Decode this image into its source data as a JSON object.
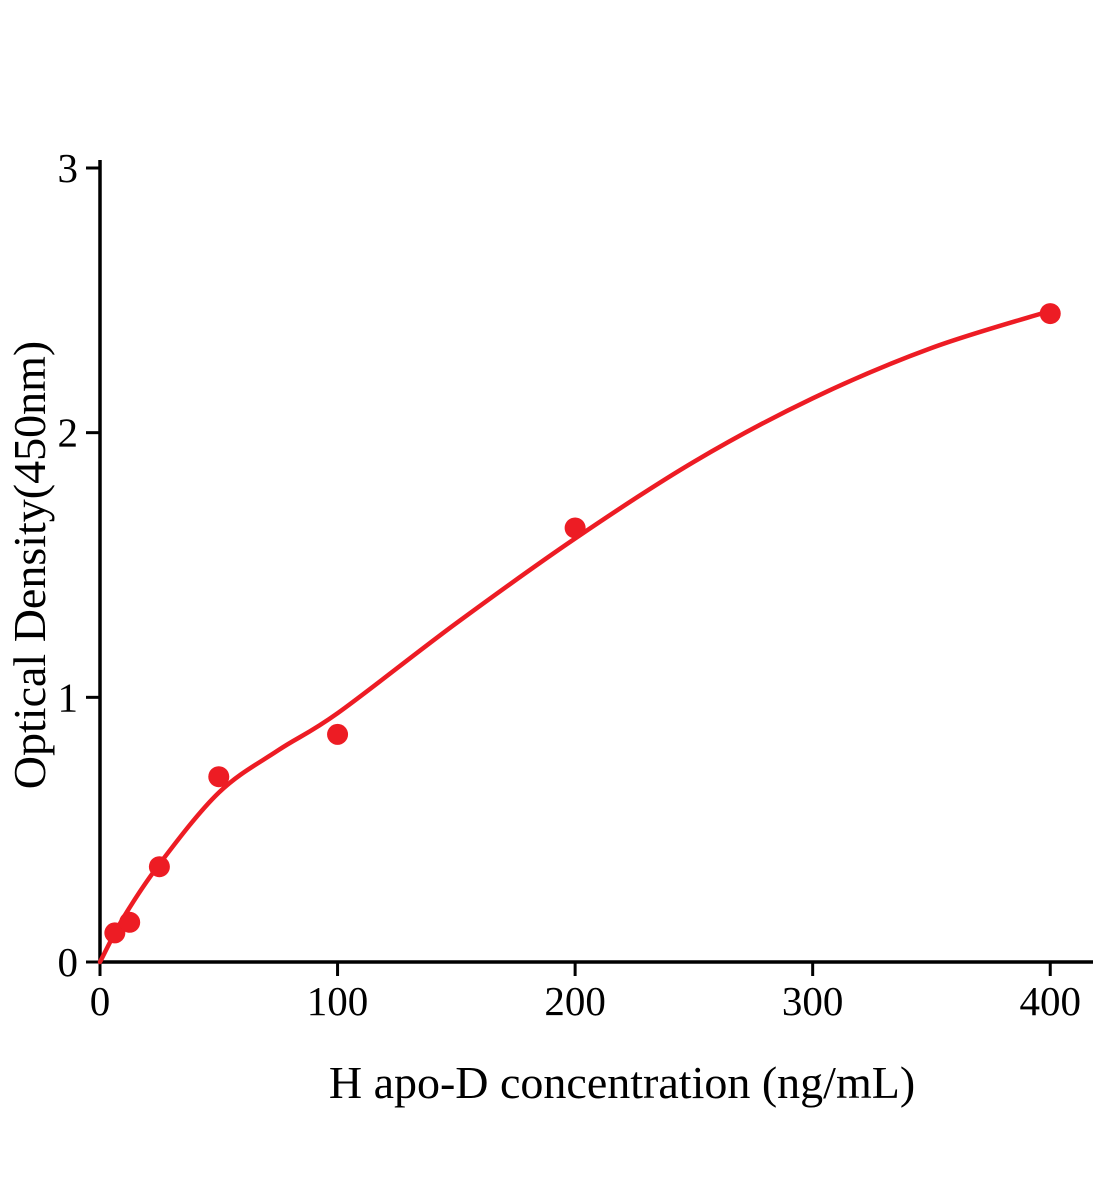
{
  "chart_data": {
    "type": "scatter",
    "title": "",
    "xlabel": "H apo-D concentration (ng/mL)",
    "ylabel": "Optical Density(450nm)",
    "xlim": [
      0,
      418
    ],
    "ylim": [
      0,
      3
    ],
    "xticks": [
      0,
      100,
      200,
      300,
      400
    ],
    "yticks": [
      0,
      1,
      2,
      3
    ],
    "grid": false,
    "legend": false,
    "points": [
      [
        6.25,
        0.11
      ],
      [
        12.5,
        0.15
      ],
      [
        25,
        0.36
      ],
      [
        50,
        0.7
      ],
      [
        100,
        0.86
      ],
      [
        200,
        1.64
      ],
      [
        400,
        2.45
      ]
    ],
    "fit_curve": [
      [
        0,
        0.0
      ],
      [
        10,
        0.17
      ],
      [
        25,
        0.37
      ],
      [
        50,
        0.64
      ],
      [
        75,
        0.8
      ],
      [
        100,
        0.94
      ],
      [
        150,
        1.28
      ],
      [
        200,
        1.6
      ],
      [
        250,
        1.89
      ],
      [
        300,
        2.13
      ],
      [
        350,
        2.32
      ],
      [
        400,
        2.46
      ]
    ],
    "colors": {
      "accent": "#ed1c24",
      "axis": "#000000"
    }
  }
}
